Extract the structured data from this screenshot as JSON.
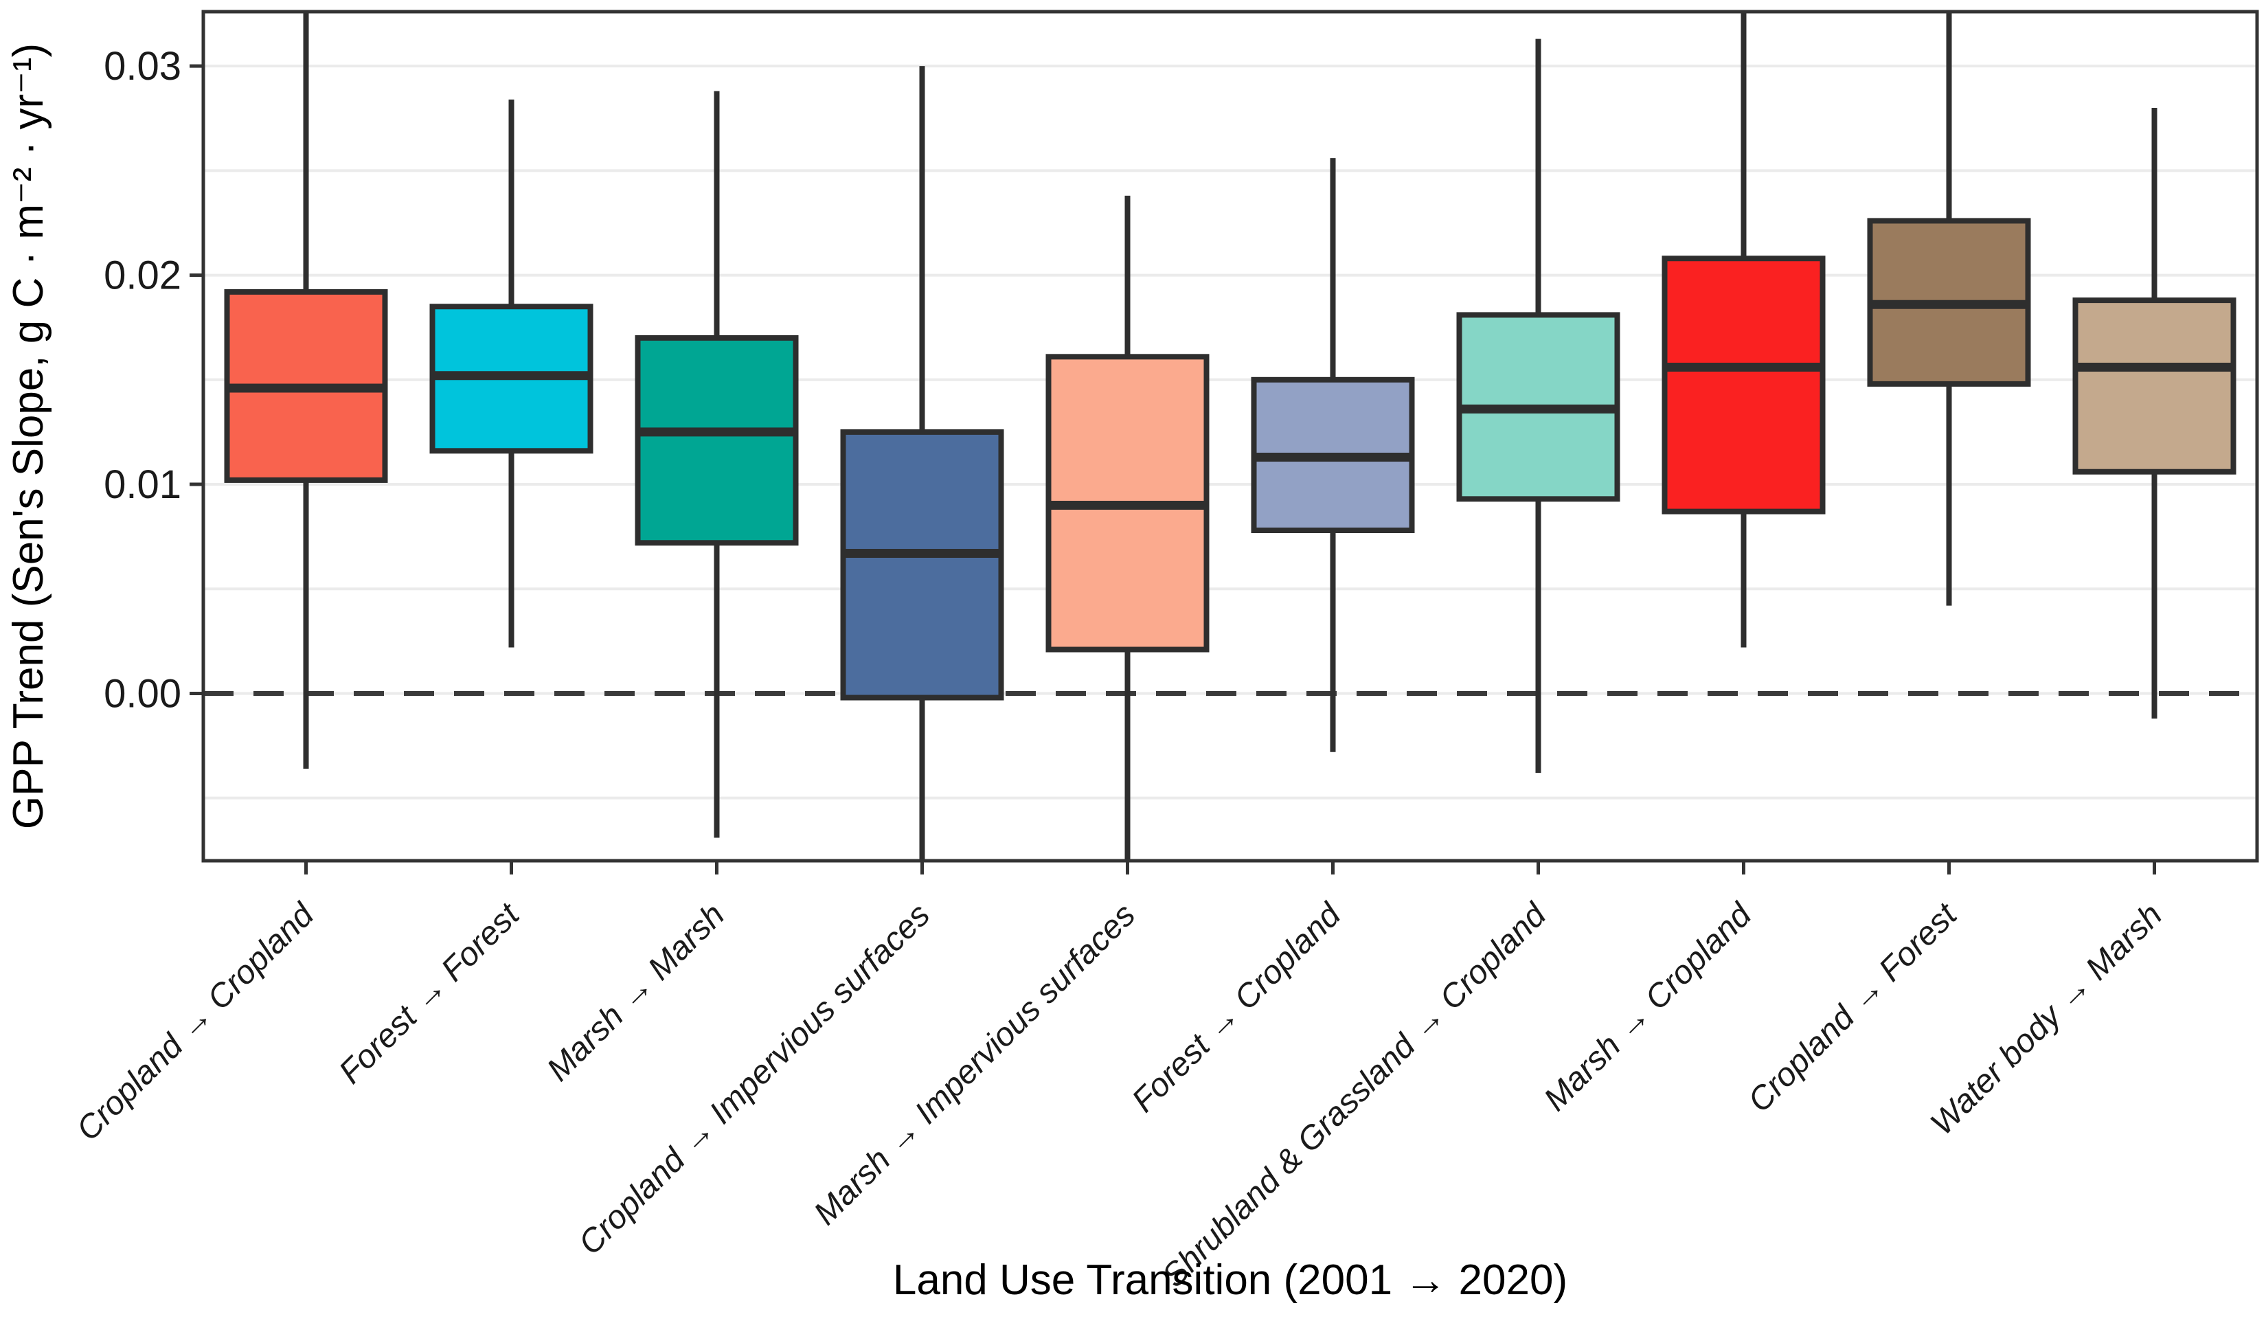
{
  "chart_data": {
    "type": "boxplot",
    "title": "",
    "xlabel": "Land Use Transition (2001 → 2020)",
    "ylabel": "GPP Trend (Sen's Slope, g C · m⁻² · yr⁻¹)",
    "ylim": [
      -0.008,
      0.0326
    ],
    "yticks": [
      {
        "value": 0.0,
        "label": "0.00"
      },
      {
        "value": 0.01,
        "label": "0.01"
      },
      {
        "value": 0.02,
        "label": "0.02"
      },
      {
        "value": 0.03,
        "label": "0.03"
      }
    ],
    "gridline_step": 0.005,
    "grid_on": true,
    "legend_position": "none",
    "reference_line": {
      "value": 0.0,
      "style": "dashed",
      "color": "#3a3a3a"
    },
    "categories": [
      "Cropland → Cropland",
      "Forest → Forest",
      "Marsh → Marsh",
      "Cropland → Impervious surfaces",
      "Marsh → Impervious surfaces",
      "Forest → Cropland",
      "Shrubland & Grassland → Cropland",
      "Marsh → Cropland",
      "Cropland → Forest",
      "Water body → Marsh"
    ],
    "series": [
      {
        "label": "Cropland → Cropland",
        "color": "#F9634E",
        "whisker_low": -0.0036,
        "q1": 0.0102,
        "median": 0.0146,
        "q3": 0.0192,
        "whisker_high": 0.0326,
        "clipped_top": true,
        "clipped_bottom": false
      },
      {
        "label": "Forest → Forest",
        "color": "#00C4DC",
        "whisker_low": 0.0022,
        "q1": 0.0116,
        "median": 0.0152,
        "q3": 0.0185,
        "whisker_high": 0.0284,
        "clipped_top": false,
        "clipped_bottom": false
      },
      {
        "label": "Marsh → Marsh",
        "color": "#00A693",
        "whisker_low": -0.0069,
        "q1": 0.0072,
        "median": 0.0125,
        "q3": 0.017,
        "whisker_high": 0.0288,
        "clipped_top": false,
        "clipped_bottom": false
      },
      {
        "label": "Cropland → Impervious surfaces",
        "color": "#4C6D9E",
        "whisker_low": -0.008,
        "q1": -0.0002,
        "median": 0.0067,
        "q3": 0.0125,
        "whisker_high": 0.03,
        "clipped_top": false,
        "clipped_bottom": true
      },
      {
        "label": "Marsh → Impervious surfaces",
        "color": "#FBAA8E",
        "whisker_low": -0.008,
        "q1": 0.0021,
        "median": 0.009,
        "q3": 0.0161,
        "whisker_high": 0.0238,
        "clipped_top": false,
        "clipped_bottom": true
      },
      {
        "label": "Forest → Cropland",
        "color": "#92A1C5",
        "whisker_low": -0.0028,
        "q1": 0.0078,
        "median": 0.0113,
        "q3": 0.015,
        "whisker_high": 0.0256,
        "clipped_top": false,
        "clipped_bottom": false
      },
      {
        "label": "Shrubland & Grassland → Cropland",
        "color": "#85D6C6",
        "whisker_low": -0.0038,
        "q1": 0.0093,
        "median": 0.0136,
        "q3": 0.0181,
        "whisker_high": 0.0313,
        "clipped_top": false,
        "clipped_bottom": false
      },
      {
        "label": "Marsh → Cropland",
        "color": "#FA2121",
        "whisker_low": 0.0022,
        "q1": 0.0087,
        "median": 0.0156,
        "q3": 0.0208,
        "whisker_high": 0.0326,
        "clipped_top": true,
        "clipped_bottom": false
      },
      {
        "label": "Cropland → Forest",
        "color": "#9A7B5D",
        "whisker_low": 0.0042,
        "q1": 0.0148,
        "median": 0.0186,
        "q3": 0.0226,
        "whisker_high": 0.0326,
        "clipped_top": true,
        "clipped_bottom": false
      },
      {
        "label": "Water body → Marsh",
        "color": "#C4A98D",
        "whisker_low": -0.0012,
        "q1": 0.0106,
        "median": 0.0156,
        "q3": 0.0188,
        "whisker_high": 0.028,
        "clipped_top": false,
        "clipped_bottom": false
      }
    ]
  },
  "style": {
    "panel_border_color": "#333333",
    "box_border_color": "#2e2e2e",
    "gridline_color": "#ebebeb",
    "axis_text_color": "#1a1a1a",
    "background_color": "#ffffff"
  }
}
